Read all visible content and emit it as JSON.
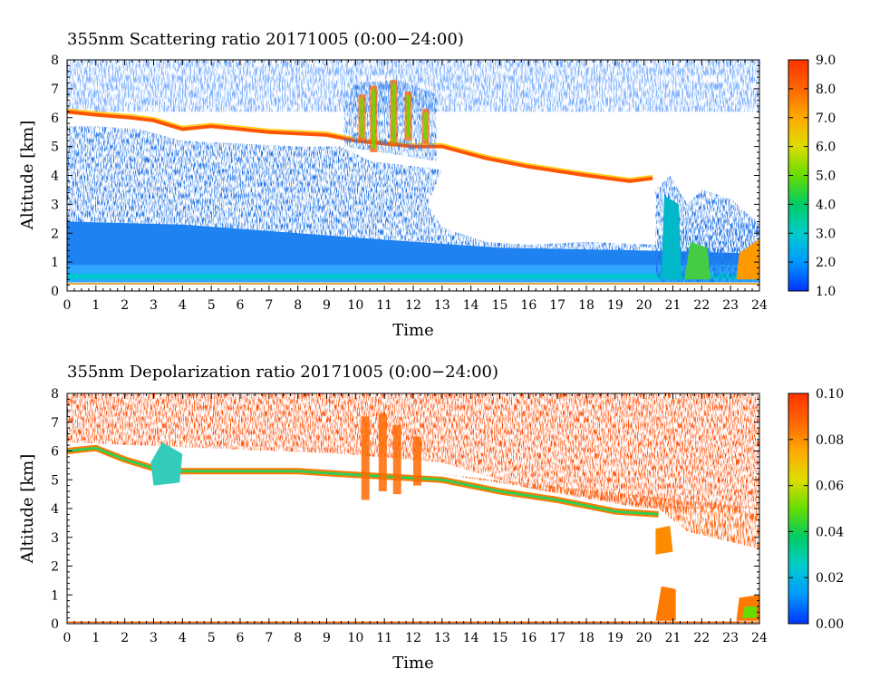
{
  "chart_data": [
    {
      "type": "heatmap",
      "title": "355nm Scattering ratio  20171005 (0:00−24:00)",
      "xlabel": "Time",
      "ylabel": "Altitude [km]",
      "xlim": [
        0,
        24
      ],
      "ylim": [
        0,
        8
      ],
      "x_ticks": [
        "0",
        "1",
        "2",
        "3",
        "4",
        "5",
        "6",
        "7",
        "8",
        "9",
        "10",
        "11",
        "12",
        "13",
        "14",
        "15",
        "16",
        "17",
        "18",
        "19",
        "20",
        "21",
        "22",
        "23",
        "24"
      ],
      "y_ticks": [
        "0",
        "1",
        "2",
        "3",
        "4",
        "5",
        "6",
        "7",
        "8"
      ],
      "colorbar": {
        "range": [
          1.0,
          9.0
        ],
        "tick_labels": [
          "1.0",
          "2.0",
          "3.0",
          "4.0",
          "5.0",
          "6.0",
          "7.0",
          "8.0",
          "9.0"
        ],
        "colors": [
          "#0033ff",
          "#0099ff",
          "#00cccc",
          "#00cc66",
          "#66dd00",
          "#dddd00",
          "#ffaa00",
          "#ff6600",
          "#ff3300"
        ]
      },
      "features": [
        {
          "name": "cloud-top-layer",
          "time": [
            0,
            13,
            20.7
          ],
          "altitude_km": [
            6.2,
            5.2,
            3.9
          ],
          "value": 7.0
        },
        {
          "name": "aerosol-boundary-layer",
          "time": [
            0,
            24
          ],
          "altitude_km": [
            0.3,
            0.6
          ],
          "value": 2.5
        },
        {
          "name": "convective-cloud",
          "time": [
            9.6,
            12.8
          ],
          "altitude_km": [
            4.5,
            7.3
          ],
          "value": 6.0
        },
        {
          "name": "low-cloud",
          "time": [
            20.5,
            24
          ],
          "altitude_km": [
            0.3,
            3.5
          ],
          "value": 5.0
        }
      ]
    },
    {
      "type": "heatmap",
      "title": "355nm Depolarization ratio  20171005 (0:00−24:00)",
      "xlabel": "Time",
      "ylabel": "Altitude [km]",
      "xlim": [
        0,
        24
      ],
      "ylim": [
        0,
        8
      ],
      "x_ticks": [
        "0",
        "1",
        "2",
        "3",
        "4",
        "5",
        "6",
        "7",
        "8",
        "9",
        "10",
        "11",
        "12",
        "13",
        "14",
        "15",
        "16",
        "17",
        "18",
        "19",
        "20",
        "21",
        "22",
        "23",
        "24"
      ],
      "y_ticks": [
        "0",
        "1",
        "2",
        "3",
        "4",
        "5",
        "6",
        "7",
        "8"
      ],
      "colorbar": {
        "range": [
          0.0,
          0.1
        ],
        "tick_labels": [
          "0.00",
          "0.02",
          "0.04",
          "0.06",
          "0.08",
          "0.10"
        ],
        "colors": [
          "#0033ff",
          "#0099ff",
          "#00cccc",
          "#00cc66",
          "#66dd00",
          "#dddd00",
          "#ffaa00",
          "#ff6600",
          "#ff3300"
        ]
      },
      "features": [
        {
          "name": "high-noise-region",
          "time": [
            0,
            24
          ],
          "altitude_km": [
            4.0,
            8.0
          ],
          "value": 0.1
        },
        {
          "name": "cloud-layer",
          "time": [
            0,
            13,
            20.5
          ],
          "altitude_km": [
            6.0,
            5.0,
            3.8
          ],
          "value": 0.03
        },
        {
          "name": "low-cloud",
          "time": [
            20.5,
            24
          ],
          "altitude_km": [
            0.2,
            3.5
          ],
          "value": 0.08
        }
      ]
    }
  ]
}
